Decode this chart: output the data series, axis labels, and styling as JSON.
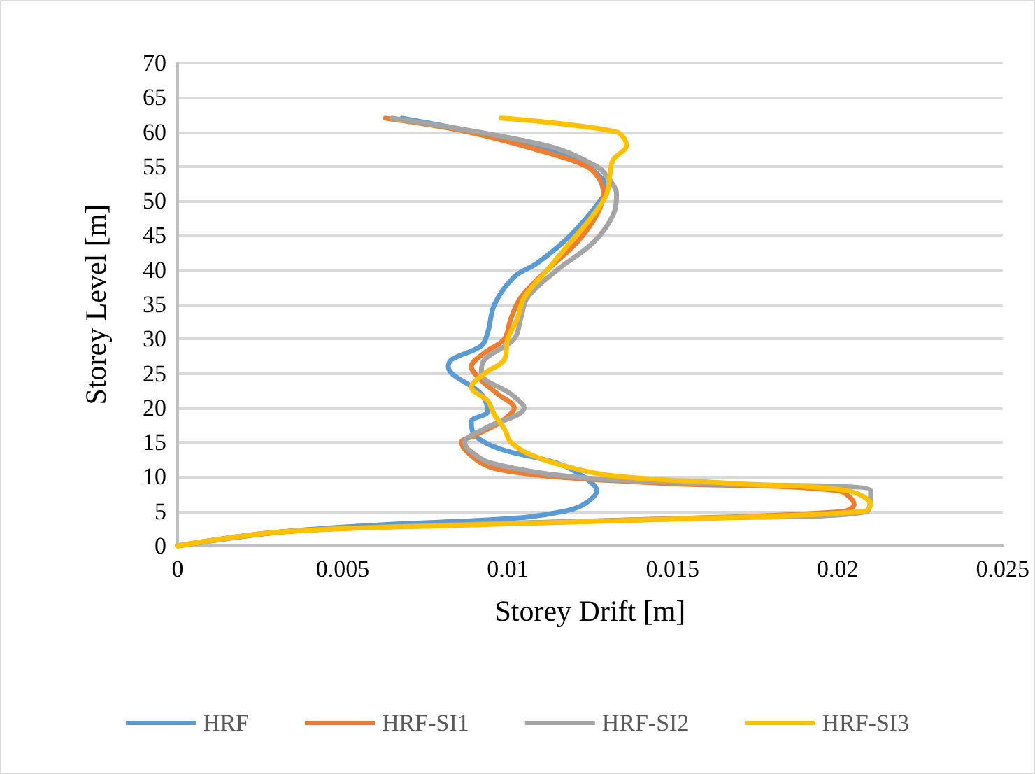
{
  "chart_data": {
    "type": "line",
    "xlabel": "Storey Drift [m]",
    "ylabel": "Storey Level [m]",
    "xlim": [
      0,
      0.025
    ],
    "xticks": [
      0,
      0.005,
      0.01,
      0.015,
      0.02,
      0.025
    ],
    "ylim": [
      0,
      70
    ],
    "yticks": [
      0,
      5,
      10,
      15,
      20,
      25,
      30,
      35,
      40,
      45,
      50,
      55,
      60,
      65,
      70
    ],
    "grid": "y",
    "legend": "bottom",
    "marker": "none",
    "line_style": "solid",
    "series": [
      {
        "name": "HRF",
        "color": "#5b9bd5",
        "x": [
          0,
          0.0031,
          0.006,
          0.0102,
          0.0117,
          0.0123,
          0.0127,
          0.0123,
          0.0115,
          0.0098,
          0.009,
          0.0089,
          0.0094,
          0.0092,
          0.0082,
          0.0083,
          0.0092,
          0.0094,
          0.0096,
          0.0102,
          0.0109,
          0.0119,
          0.0128,
          0.013,
          0.0127,
          0.0121,
          0.0107,
          0.009,
          0.0068
        ],
        "values": [
          0,
          2,
          3,
          4,
          5,
          6,
          8,
          10,
          12,
          14,
          16,
          18,
          19.5,
          22,
          26,
          27,
          29,
          31,
          35,
          39,
          41,
          45,
          50,
          52,
          54,
          56,
          58,
          60,
          62
        ]
      },
      {
        "name": "HRF-SI1",
        "color": "#ed7d31",
        "x": [
          0,
          0.0031,
          0.008,
          0.0155,
          0.0202,
          0.0205,
          0.02,
          0.015,
          0.0115,
          0.0098,
          0.0092,
          0.0087,
          0.0086,
          0.009,
          0.0098,
          0.0102,
          0.0097,
          0.0092,
          0.0089,
          0.0093,
          0.0099,
          0.0101,
          0.0104,
          0.0112,
          0.0121,
          0.0127,
          0.0129,
          0.0128,
          0.0124,
          0.0112,
          0.0088,
          0.0063
        ],
        "values": [
          0,
          2,
          3,
          4,
          5,
          6,
          8,
          9,
          10,
          11,
          12,
          14,
          15,
          16,
          18,
          20,
          22,
          24,
          26,
          28,
          30,
          33,
          36,
          40,
          44,
          48,
          51,
          53,
          55,
          57,
          60,
          62
        ]
      },
      {
        "name": "HRF-SI2",
        "color": "#a5a5a5",
        "x": [
          0,
          0.0031,
          0.008,
          0.0158,
          0.0209,
          0.021,
          0.016,
          0.012,
          0.0095,
          0.0088,
          0.0087,
          0.0093,
          0.0105,
          0.0101,
          0.0092,
          0.0093,
          0.0102,
          0.0104,
          0.0106,
          0.0115,
          0.0126,
          0.0132,
          0.0133,
          0.0131,
          0.0127,
          0.0112,
          0.0065
        ],
        "values": [
          0,
          2,
          3,
          4,
          5,
          8,
          9,
          10,
          12,
          14,
          15,
          17,
          20,
          22,
          25,
          27,
          30,
          33,
          36,
          40,
          44,
          48,
          51,
          53,
          55,
          58,
          62
        ]
      },
      {
        "name": "HRF-SI3",
        "color": "#ffc000",
        "x": [
          0,
          0.0031,
          0.0085,
          0.016,
          0.0208,
          0.021,
          0.0203,
          0.017,
          0.0135,
          0.0122,
          0.0108,
          0.0101,
          0.0099,
          0.0096,
          0.0094,
          0.0089,
          0.0093,
          0.0099,
          0.01,
          0.0103,
          0.0105,
          0.0112,
          0.0119,
          0.0126,
          0.013,
          0.0131,
          0.0132,
          0.0136,
          0.0133,
          0.0098
        ],
        "values": [
          0,
          2,
          3,
          4,
          5,
          6,
          8,
          9,
          10,
          11,
          13,
          15,
          17,
          19,
          21,
          23,
          25,
          27,
          30,
          33,
          36,
          40,
          44,
          48,
          51,
          54,
          56,
          58,
          60,
          62
        ]
      }
    ]
  }
}
